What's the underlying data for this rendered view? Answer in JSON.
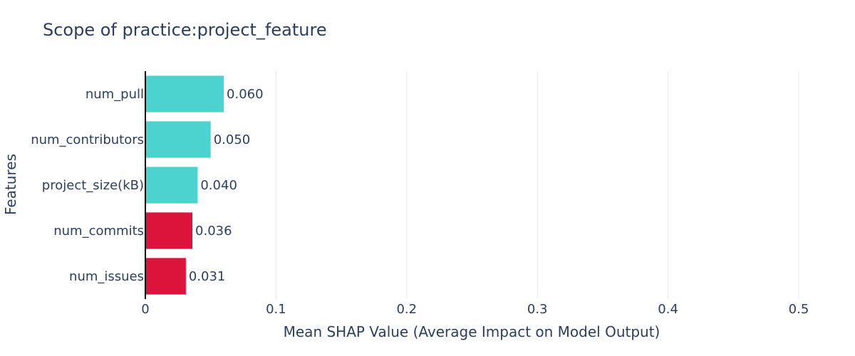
{
  "chart_data": {
    "type": "bar",
    "orientation": "horizontal",
    "title": "Scope of practice:project_feature",
    "xlabel": "Mean SHAP Value (Average Impact on Model Output)",
    "ylabel": "Features",
    "xlim": [
      0,
      0.5
    ],
    "x_ticks": [
      0,
      0.1,
      0.2,
      0.3,
      0.4,
      0.5
    ],
    "x_tick_labels": [
      "0",
      "0.1",
      "0.2",
      "0.3",
      "0.4",
      "0.5"
    ],
    "grid": true,
    "categories": [
      "num_pull",
      "num_contributors",
      "project_size(kB)",
      "num_commits",
      "num_issues"
    ],
    "values": [
      0.06,
      0.05,
      0.04,
      0.036,
      0.031
    ],
    "value_labels": [
      "0.060",
      "0.050",
      "0.040",
      "0.036",
      "0.031"
    ],
    "bar_colors": [
      "#4dd3cf",
      "#4dd3cf",
      "#4dd3cf",
      "#dc143c",
      "#dc143c"
    ]
  }
}
